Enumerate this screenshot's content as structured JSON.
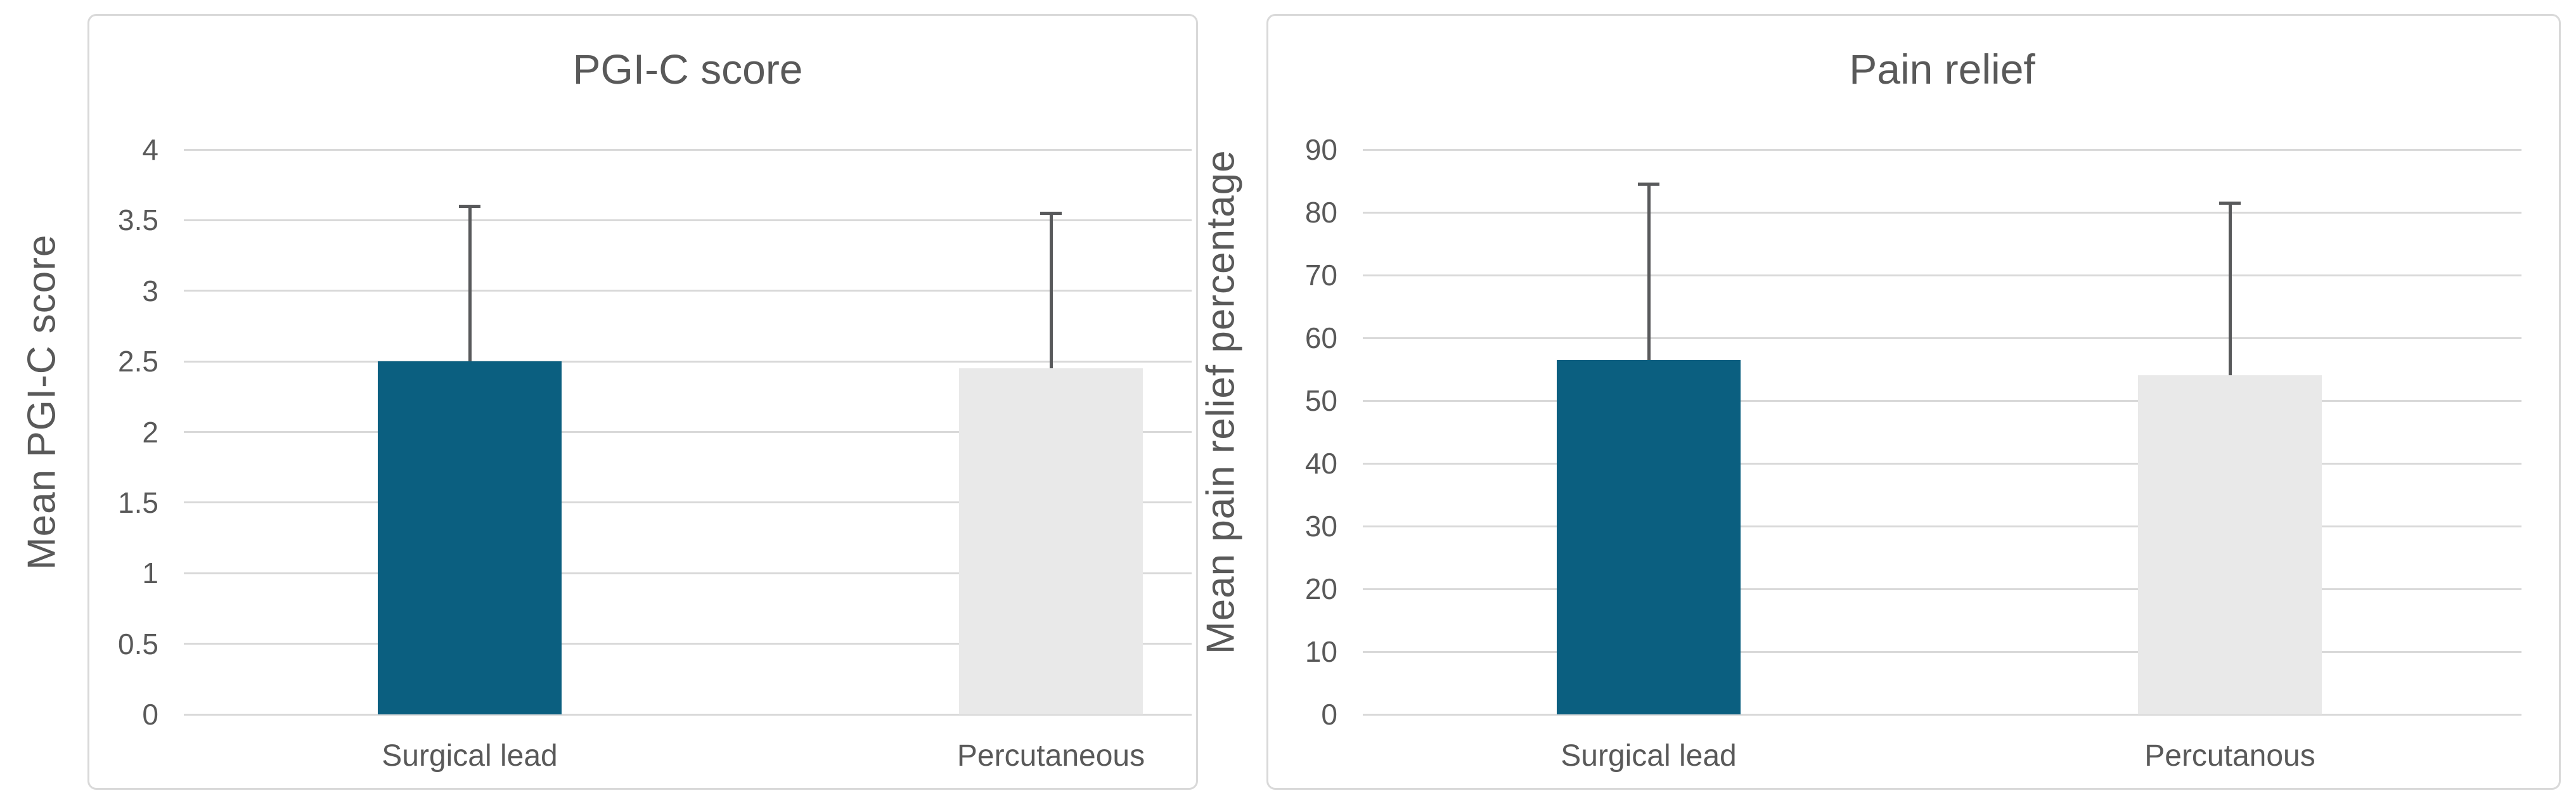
{
  "figure": {
    "background": "#ffffff",
    "panel_border_color": "#d9d9d9",
    "gridline_color": "#d9d9d9",
    "text_color": "#595959",
    "error_bar_color": "#58595b"
  },
  "chart_data": [
    {
      "type": "bar",
      "title": "PGI-C score",
      "ylabel": "Mean PGI-C score",
      "xlabel": "",
      "categories": [
        "Surgical lead",
        "Percutaneous"
      ],
      "values": [
        2.5,
        2.45
      ],
      "error_plus": [
        1.1,
        1.1
      ],
      "ylim": [
        0,
        4
      ],
      "yticks": [
        0,
        0.5,
        1,
        1.5,
        2,
        2.5,
        3,
        3.5,
        4
      ],
      "bar_colors": [
        "#0b5f80",
        "#e9e9e9"
      ],
      "grid": true,
      "legend_position": "none"
    },
    {
      "type": "bar",
      "title": "Pain relief",
      "ylabel": "Mean pain relief percentage",
      "xlabel": "",
      "categories": [
        "Surgical lead",
        "Percutanous"
      ],
      "values": [
        56.5,
        54
      ],
      "error_plus": [
        28,
        27.5
      ],
      "ylim": [
        0,
        90
      ],
      "yticks": [
        0,
        10,
        20,
        30,
        40,
        50,
        60,
        70,
        80,
        90
      ],
      "bar_colors": [
        "#0b5f80",
        "#e9e9e9"
      ],
      "grid": true,
      "legend_position": "none"
    }
  ]
}
